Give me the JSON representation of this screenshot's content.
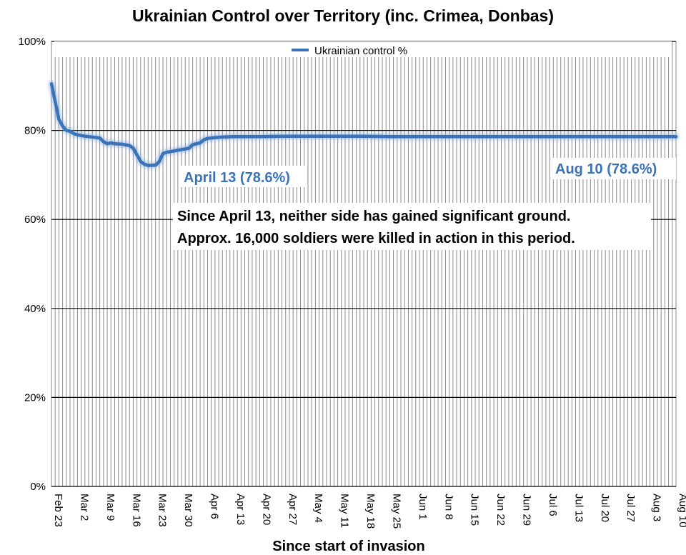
{
  "chart_data": {
    "type": "line",
    "title": "Ukrainian Control over Territory (inc. Crimea, Donbas)",
    "xlabel": "Since start of invasion",
    "ylabel": "",
    "ylim": [
      0,
      100
    ],
    "yticks": [
      "0%",
      "20%",
      "40%",
      "60%",
      "80%",
      "100%"
    ],
    "xticks": [
      "Feb 23",
      "Mar 2",
      "Mar 9",
      "Mar 16",
      "Mar 23",
      "Mar 30",
      "Apr 6",
      "Apr 13",
      "Apr 20",
      "Apr 27",
      "May 4",
      "May 11",
      "May 18",
      "May 25",
      "Jun 1",
      "Jun 8",
      "Jun 15",
      "Jun 22",
      "Jun 29",
      "Jul 6",
      "Jul 13",
      "Jul 20",
      "Jul 27",
      "Aug 3",
      "Aug 10"
    ],
    "legend": "top-center",
    "grid": "vertical daily lines, horizontal major lines",
    "series": [
      {
        "name": "Ukrainian control %",
        "color": "#3a73b8",
        "x": [
          "Feb 23",
          "Feb 24",
          "Feb 25",
          "Feb 26",
          "Feb 27",
          "Feb 28",
          "Mar 1",
          "Mar 2",
          "Mar 4",
          "Mar 6",
          "Mar 8",
          "Mar 9",
          "Mar 10",
          "Mar 11",
          "Mar 12",
          "Mar 14",
          "Mar 16",
          "Mar 17",
          "Mar 18",
          "Mar 19",
          "Mar 20",
          "Mar 21",
          "Mar 23",
          "Mar 24",
          "Mar 25",
          "Mar 26",
          "Mar 28",
          "Mar 30",
          "Apr 1",
          "Apr 2",
          "Apr 4",
          "Apr 5",
          "Apr 6",
          "Apr 8",
          "Apr 10",
          "Apr 13",
          "Apr 20",
          "Apr 27",
          "May 4",
          "May 11",
          "May 18",
          "May 25",
          "Jun 1",
          "Jun 8",
          "Jun 15",
          "Jun 22",
          "Jun 29",
          "Jul 6",
          "Jul 13",
          "Jul 20",
          "Jul 27",
          "Aug 3",
          "Aug 10"
        ],
        "values": [
          90.5,
          86.5,
          82.5,
          81.0,
          80.0,
          79.8,
          79.3,
          79.0,
          78.7,
          78.5,
          78.3,
          77.5,
          77.0,
          77.2,
          77.0,
          76.9,
          76.6,
          76.0,
          74.5,
          73.0,
          72.4,
          72.1,
          72.2,
          73.0,
          74.8,
          75.1,
          75.4,
          75.7,
          76.0,
          76.8,
          77.2,
          77.9,
          78.2,
          78.4,
          78.5,
          78.6,
          78.6,
          78.7,
          78.7,
          78.7,
          78.7,
          78.6,
          78.6,
          78.6,
          78.6,
          78.6,
          78.6,
          78.6,
          78.6,
          78.6,
          78.6,
          78.6,
          78.6
        ]
      }
    ],
    "annotations": {
      "april_label": "April 13 (78.6%)",
      "aug_label": "Aug 10 (78.6%)",
      "note_line1": "Since April 13, neither side has gained significant ground.",
      "note_line2": "Approx. 16,000 soldiers were killed in action in this period."
    }
  }
}
